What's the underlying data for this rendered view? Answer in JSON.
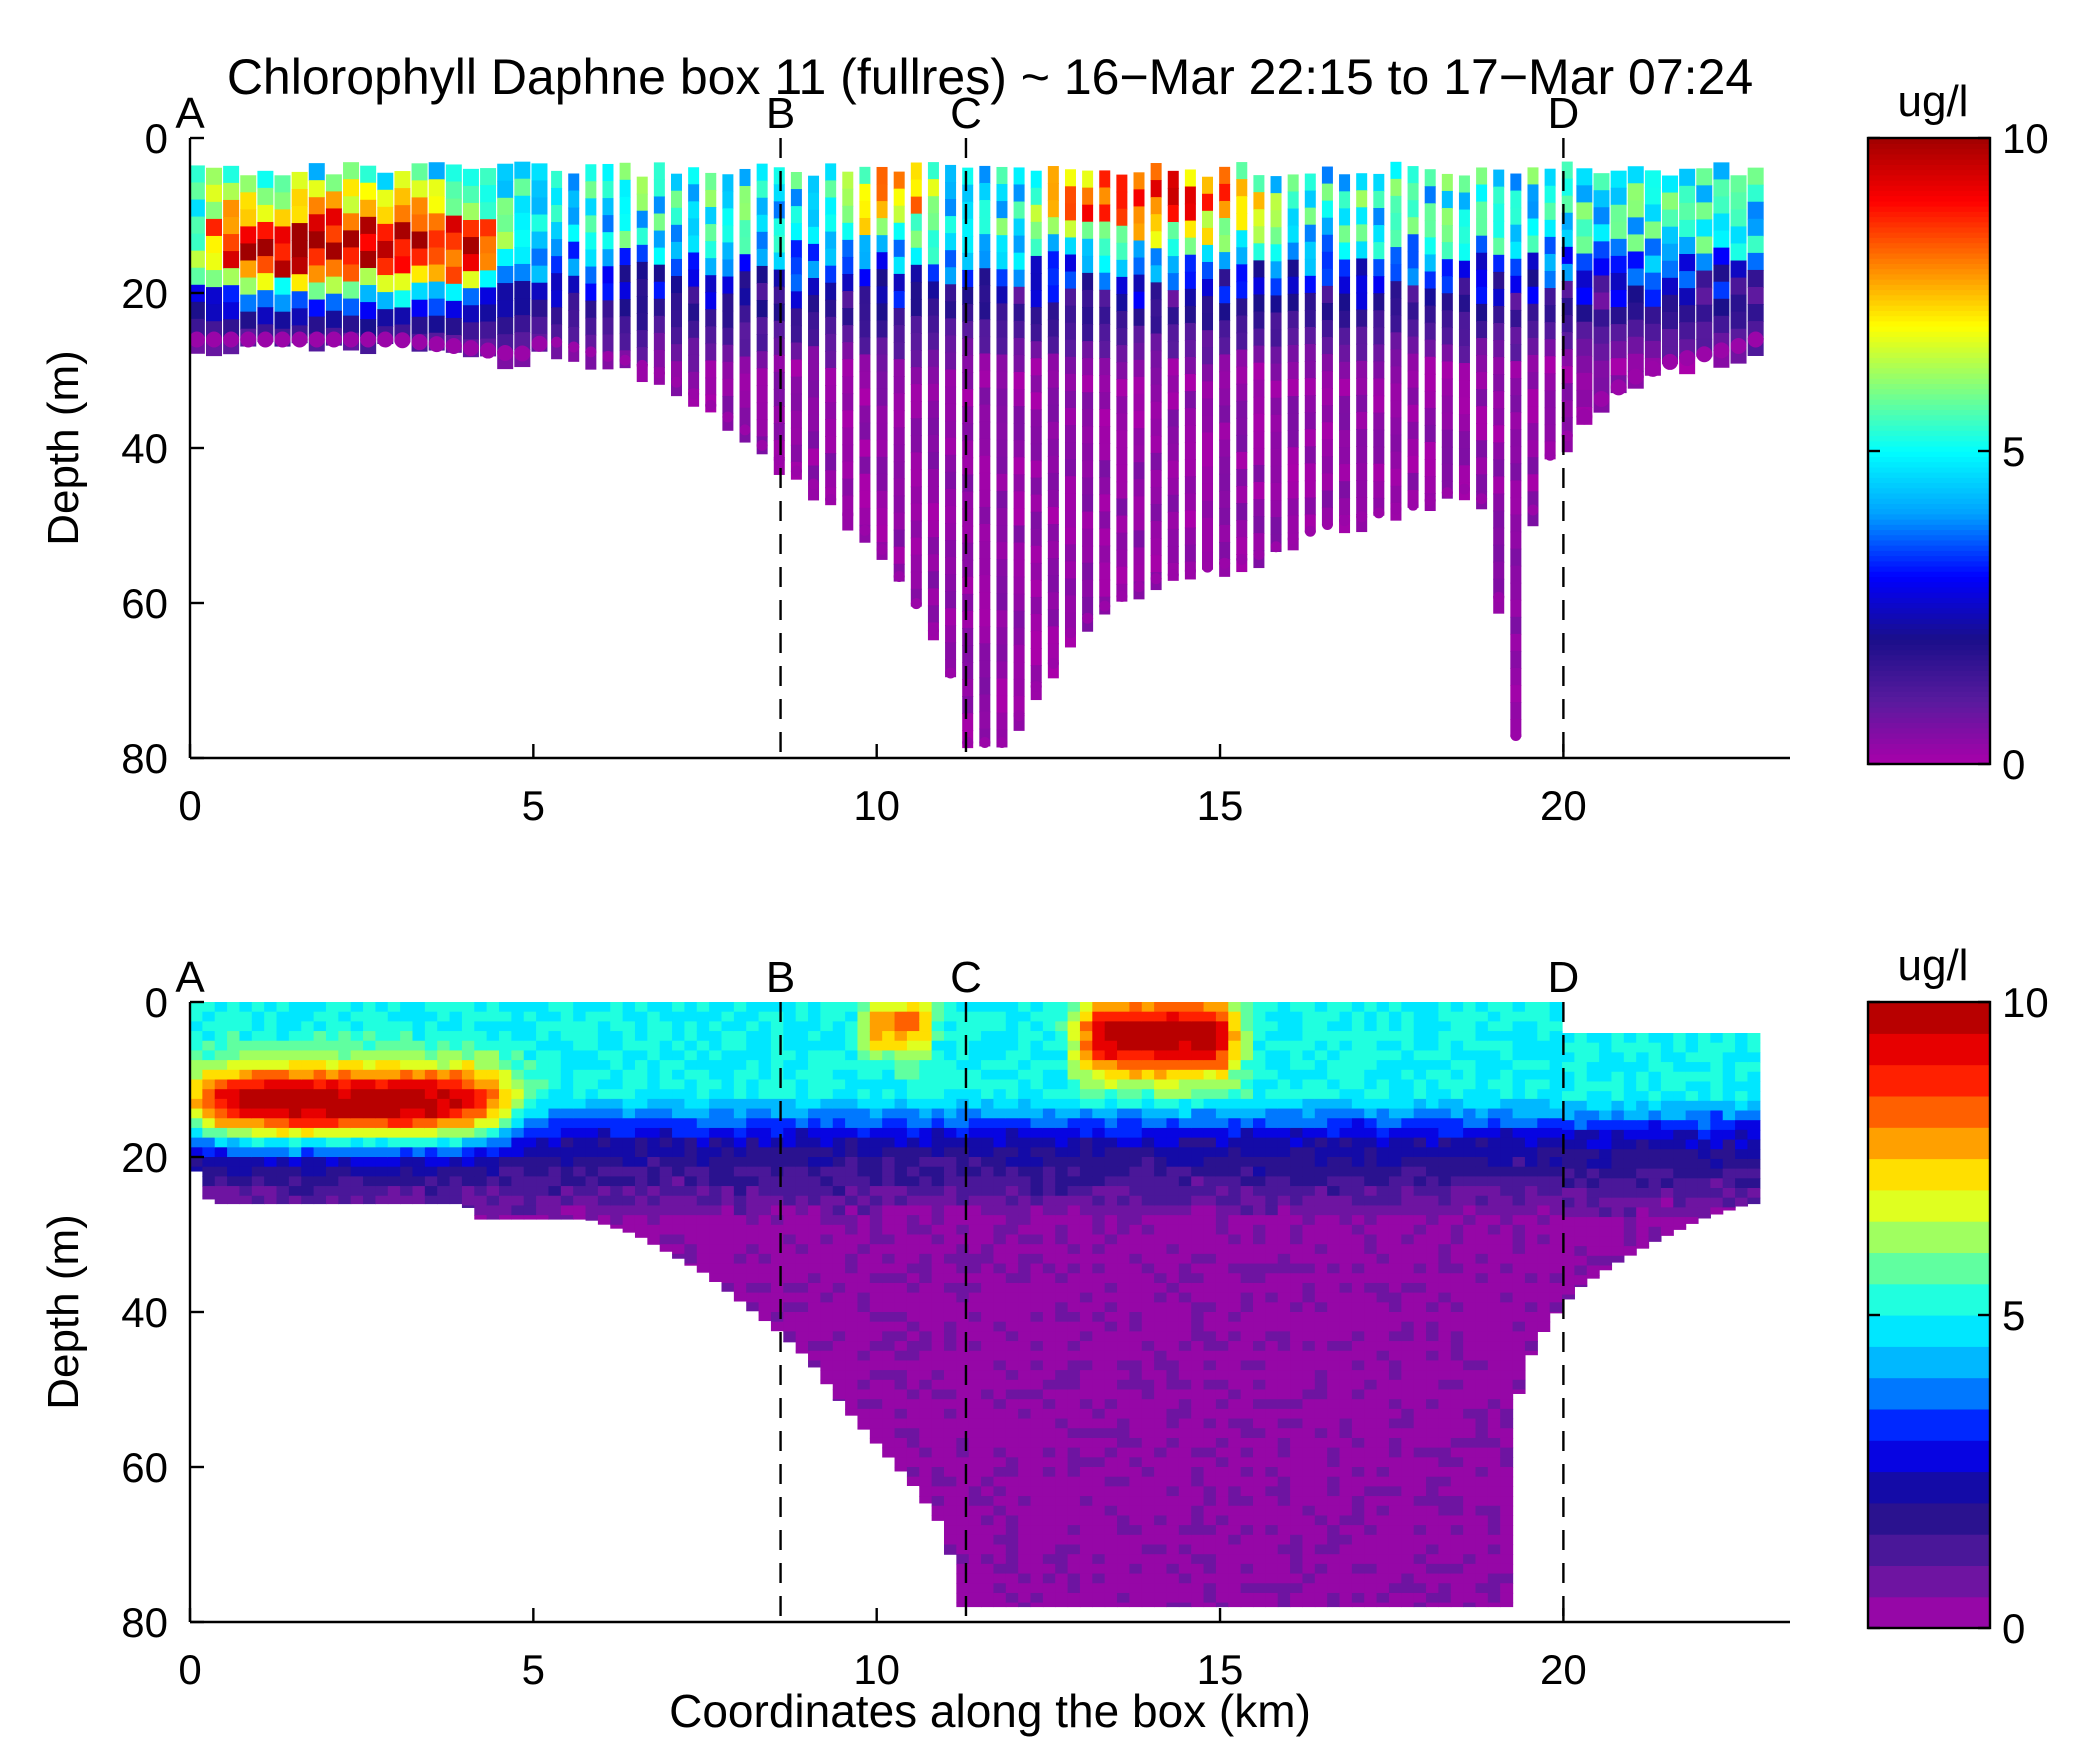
{
  "title": "Chlorophyll Daphne box 11 (fullres) ~ 16−Mar 22:15 to 17−Mar 07:24",
  "xlabel": "Coordinates along the box (km)",
  "colormap": [
    "#aa00aa",
    "#5a1a9e",
    "#1a0f8a",
    "#0000ff",
    "#00a0ff",
    "#00ffff",
    "#80ff80",
    "#ffff00",
    "#ff8000",
    "#ff0000",
    "#a00000"
  ],
  "chart_data": [
    {
      "type": "heatmap",
      "panel": "top",
      "subtype": "glider profiles (scatter, color = chlorophyll)",
      "title": "Chlorophyll Daphne box 11 (fullres) ~ 16−Mar 22:15 to 17−Mar 07:24",
      "xlabel": "",
      "ylabel": "Depth (m)",
      "xlim": [
        0,
        23.3
      ],
      "ylim": [
        80,
        0
      ],
      "x_ticks": [
        0,
        5,
        10,
        15,
        20
      ],
      "y_ticks": [
        0,
        20,
        40,
        60,
        80
      ],
      "colorbar": {
        "label": "ug/l",
        "range": [
          0,
          10
        ],
        "ticks": [
          0,
          5,
          10
        ],
        "continuous": true
      },
      "markers": [
        {
          "label": "A",
          "x": 0
        },
        {
          "label": "B",
          "x": 8.6
        },
        {
          "label": "C",
          "x": 11.3
        },
        {
          "label": "D",
          "x": 20.0
        }
      ],
      "profile_max_depth": [
        [
          0.0,
          26
        ],
        [
          0.5,
          26
        ],
        [
          1.0,
          26
        ],
        [
          2.0,
          26
        ],
        [
          3.0,
          26
        ],
        [
          4.0,
          27
        ],
        [
          4.8,
          28
        ],
        [
          5.2,
          26
        ],
        [
          5.6,
          27
        ],
        [
          6.0,
          28
        ],
        [
          6.5,
          29
        ],
        [
          7.0,
          31
        ],
        [
          7.5,
          34
        ],
        [
          8.0,
          37
        ],
        [
          8.5,
          41
        ],
        [
          9.0,
          44
        ],
        [
          9.5,
          48
        ],
        [
          10.0,
          52
        ],
        [
          10.5,
          59
        ],
        [
          11.0,
          66
        ],
        [
          11.3,
          78
        ],
        [
          11.6,
          78
        ],
        [
          11.9,
          78
        ],
        [
          12.2,
          72
        ],
        [
          12.5,
          69
        ],
        [
          12.8,
          64
        ],
        [
          13.2,
          61
        ],
        [
          13.6,
          59
        ],
        [
          14.0,
          57
        ],
        [
          14.5,
          56
        ],
        [
          15.0,
          55
        ],
        [
          15.5,
          54
        ],
        [
          16.0,
          52
        ],
        [
          16.5,
          50
        ],
        [
          17.0,
          49
        ],
        [
          17.5,
          48
        ],
        [
          18.0,
          47
        ],
        [
          18.5,
          45
        ],
        [
          18.9,
          47
        ],
        [
          19.3,
          78
        ],
        [
          19.6,
          43
        ],
        [
          20.0,
          39
        ],
        [
          20.5,
          34
        ],
        [
          21.0,
          31
        ],
        [
          21.5,
          29
        ],
        [
          22.0,
          28
        ],
        [
          22.5,
          27
        ],
        [
          22.8,
          26
        ]
      ],
      "surface_chl_features": [
        {
          "x_range": [
            0.2,
            4.5
          ],
          "depth_range": [
            8,
            18
          ],
          "value": 10
        },
        {
          "x_range": [
            12.5,
            15.5
          ],
          "depth_range": [
            3,
            10
          ],
          "value": 9
        },
        {
          "x_range": [
            9.8,
            10.7
          ],
          "depth_range": [
            3,
            10
          ],
          "value": 8
        }
      ]
    },
    {
      "type": "heatmap",
      "panel": "bottom",
      "subtype": "gridded contour section",
      "title": "",
      "xlabel": "Coordinates along the box (km)",
      "ylabel": "Depth (m)",
      "xlim": [
        0,
        23.3
      ],
      "ylim": [
        80,
        0
      ],
      "x_ticks": [
        0,
        5,
        10,
        15,
        20
      ],
      "y_ticks": [
        0,
        20,
        40,
        60,
        80
      ],
      "colorbar": {
        "label": "ug/l",
        "range": [
          0,
          10
        ],
        "ticks": [
          0,
          5,
          10
        ],
        "levels": 20
      },
      "markers": [
        {
          "label": "A",
          "x": 0
        },
        {
          "label": "B",
          "x": 8.6
        },
        {
          "label": "C",
          "x": 11.3
        },
        {
          "label": "D",
          "x": 20.0
        }
      ],
      "max_depth_profile": [
        [
          0.0,
          20
        ],
        [
          0.3,
          26
        ],
        [
          4.0,
          26
        ],
        [
          4.2,
          28
        ],
        [
          5.8,
          28
        ],
        [
          6.5,
          30
        ],
        [
          7.5,
          35
        ],
        [
          8.5,
          42
        ],
        [
          9.0,
          46
        ],
        [
          9.5,
          52
        ],
        [
          10.0,
          57
        ],
        [
          10.5,
          62
        ],
        [
          10.9,
          67
        ],
        [
          11.1,
          72
        ],
        [
          11.1,
          78
        ],
        [
          19.3,
          78
        ],
        [
          19.3,
          52
        ],
        [
          19.5,
          46
        ],
        [
          19.8,
          41
        ],
        [
          20.2,
          37
        ],
        [
          20.7,
          34
        ],
        [
          21.3,
          31
        ],
        [
          22.0,
          28
        ],
        [
          22.7,
          26
        ]
      ],
      "surface_top_profile": [
        [
          0.0,
          0
        ],
        [
          20.0,
          0
        ],
        [
          20.1,
          4
        ],
        [
          22.8,
          4
        ],
        [
          22.8,
          10
        ],
        [
          22.9,
          11
        ],
        [
          22.7,
          17
        ]
      ],
      "features": [
        {
          "name": "subsurface maximum",
          "x_range": [
            0.0,
            4.6
          ],
          "depth_range": [
            9,
            17
          ],
          "value": 10
        },
        {
          "name": "surface bloom",
          "x_range": [
            13.0,
            15.2
          ],
          "depth_range": [
            0,
            9
          ],
          "value": 10
        },
        {
          "name": "surface patch",
          "x_range": [
            9.9,
            10.7
          ],
          "depth_range": [
            0,
            6
          ],
          "value": 8
        },
        {
          "name": "mixed layer",
          "x_range": [
            0.0,
            22.8
          ],
          "depth_range": [
            0,
            15
          ],
          "value": 5
        },
        {
          "name": "deep water",
          "x_range": [
            0.0,
            22.8
          ],
          "depth_range": [
            25,
            80
          ],
          "value": 0.2
        }
      ]
    }
  ]
}
